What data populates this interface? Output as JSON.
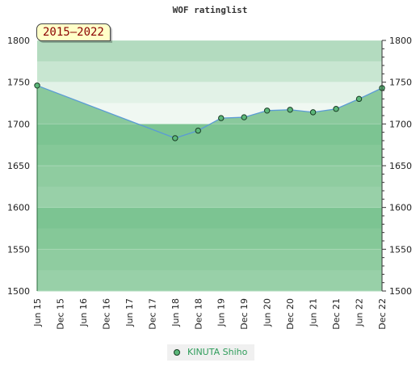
{
  "chart_data": {
    "type": "area",
    "title": "WOF ratinglist",
    "period_badge": "2015–2022",
    "categories": [
      "Jun 15",
      "Dec 15",
      "Jun 16",
      "Dec 16",
      "Jun 17",
      "Dec 17",
      "Jun 18",
      "Dec 18",
      "Jun 19",
      "Dec 19",
      "Jun 20",
      "Dec 20",
      "Jun 21",
      "Dec 21",
      "Jun 22",
      "Dec 22"
    ],
    "series": [
      {
        "name": "KINUTA Shiho",
        "points": [
          {
            "x": "Jun 15",
            "y": 1746
          },
          {
            "x": "Jun 18",
            "y": 1683
          },
          {
            "x": "Dec 18",
            "y": 1692
          },
          {
            "x": "Jun 19",
            "y": 1707
          },
          {
            "x": "Dec 19",
            "y": 1708
          },
          {
            "x": "Jun 20",
            "y": 1716
          },
          {
            "x": "Dec 20",
            "y": 1717
          },
          {
            "x": "Jun 21",
            "y": 1714
          },
          {
            "x": "Dec 21",
            "y": 1718
          },
          {
            "x": "Jun 22",
            "y": 1730
          },
          {
            "x": "Dec 22",
            "y": 1743
          }
        ]
      }
    ],
    "ylim": [
      1500,
      1800
    ],
    "yticks": [
      1500,
      1550,
      1600,
      1650,
      1700,
      1750,
      1800
    ],
    "y_axis_both_sides": true,
    "legend_position": "bottom-center",
    "grid": true,
    "colors": {
      "fill": "#8fcca0",
      "line": "#5b9bd5",
      "marker": "#5cb87a",
      "marker_edge": "#1a3d25",
      "band_light": "#f0f8f2",
      "band_dark": "#7cc492",
      "badge_text": "#8b0000",
      "legend_text": "#2e9c5a"
    }
  }
}
